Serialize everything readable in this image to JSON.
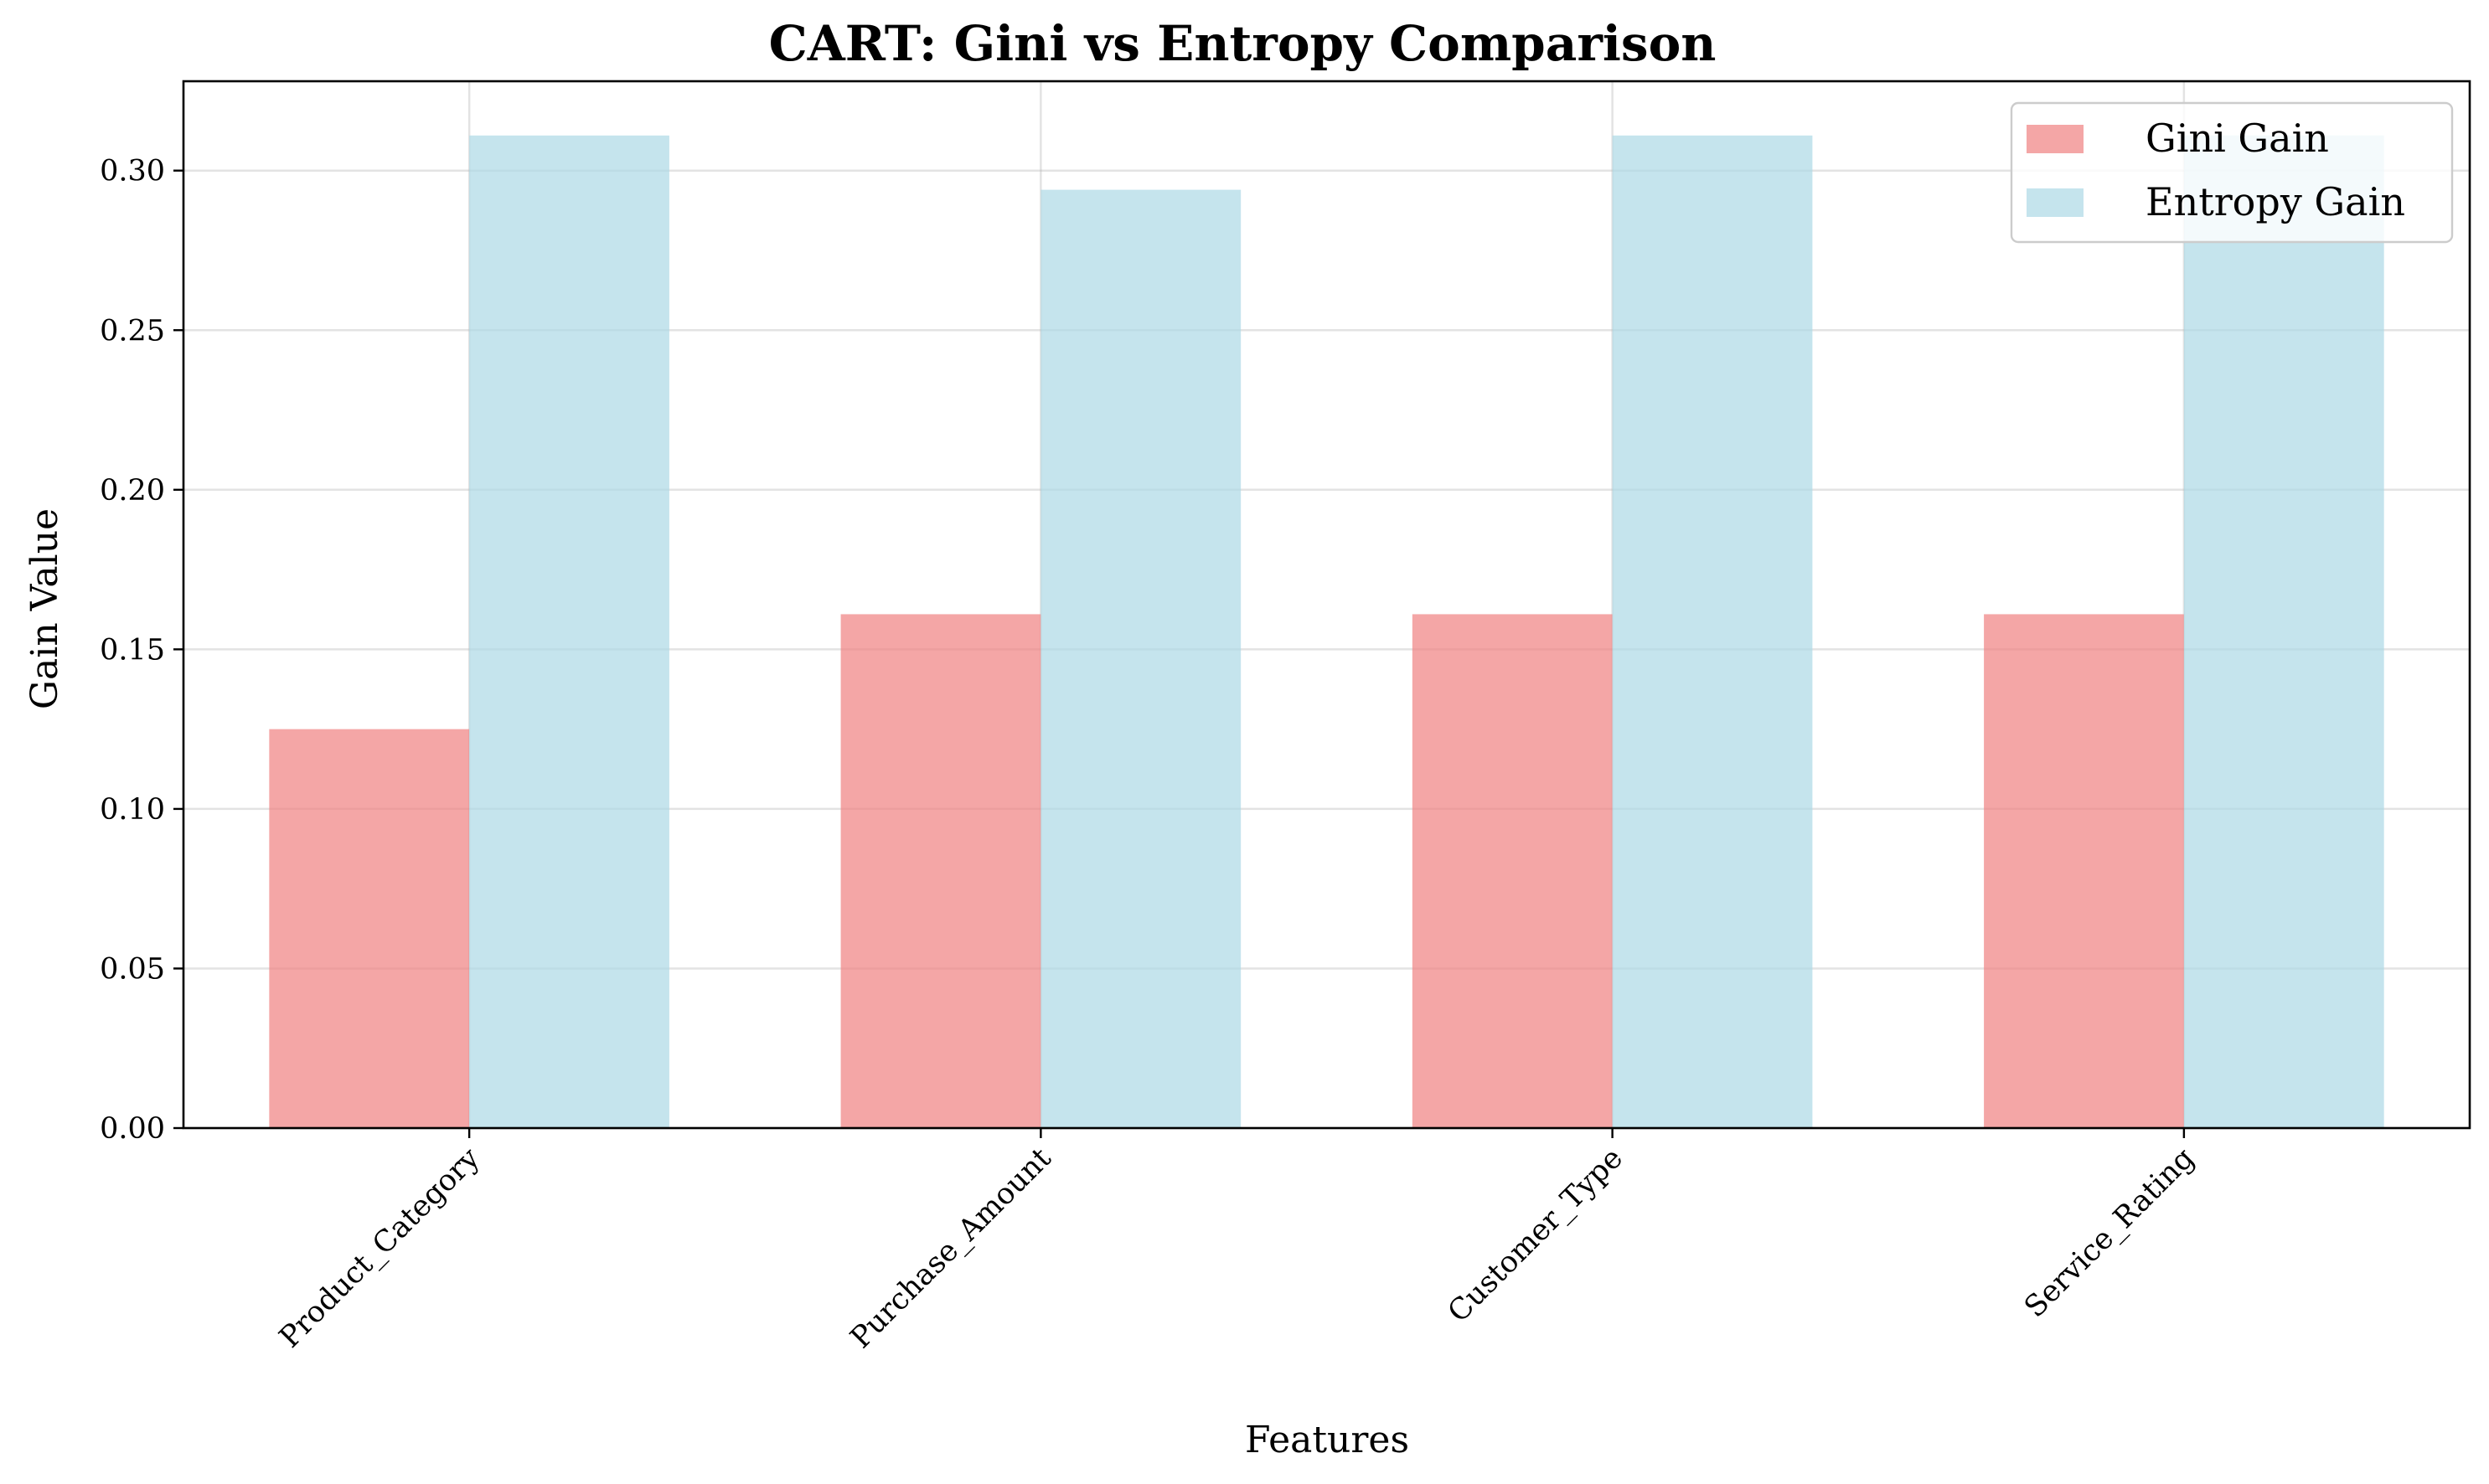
{
  "chart_data": {
    "type": "bar",
    "title": "CART: Gini vs Entropy Comparison",
    "xlabel": "Features",
    "ylabel": "Gain Value",
    "categories": [
      "Product_Category",
      "Purchase_Amount",
      "Customer_Type",
      "Service_Rating"
    ],
    "series": [
      {
        "name": "Gini Gain",
        "color": "#f08080",
        "values": [
          0.125,
          0.161,
          0.161,
          0.161
        ]
      },
      {
        "name": "Entropy Gain",
        "color": "#add8e6",
        "values": [
          0.311,
          0.294,
          0.311,
          0.311
        ]
      }
    ],
    "ylim": [
      0,
      0.328
    ],
    "yticks": [
      0.0,
      0.05,
      0.1,
      0.15,
      0.2,
      0.25,
      0.3
    ],
    "ytick_labels": [
      "0.00",
      "0.05",
      "0.10",
      "0.15",
      "0.20",
      "0.25",
      "0.30"
    ],
    "grid": true,
    "legend_position": "top-right"
  }
}
